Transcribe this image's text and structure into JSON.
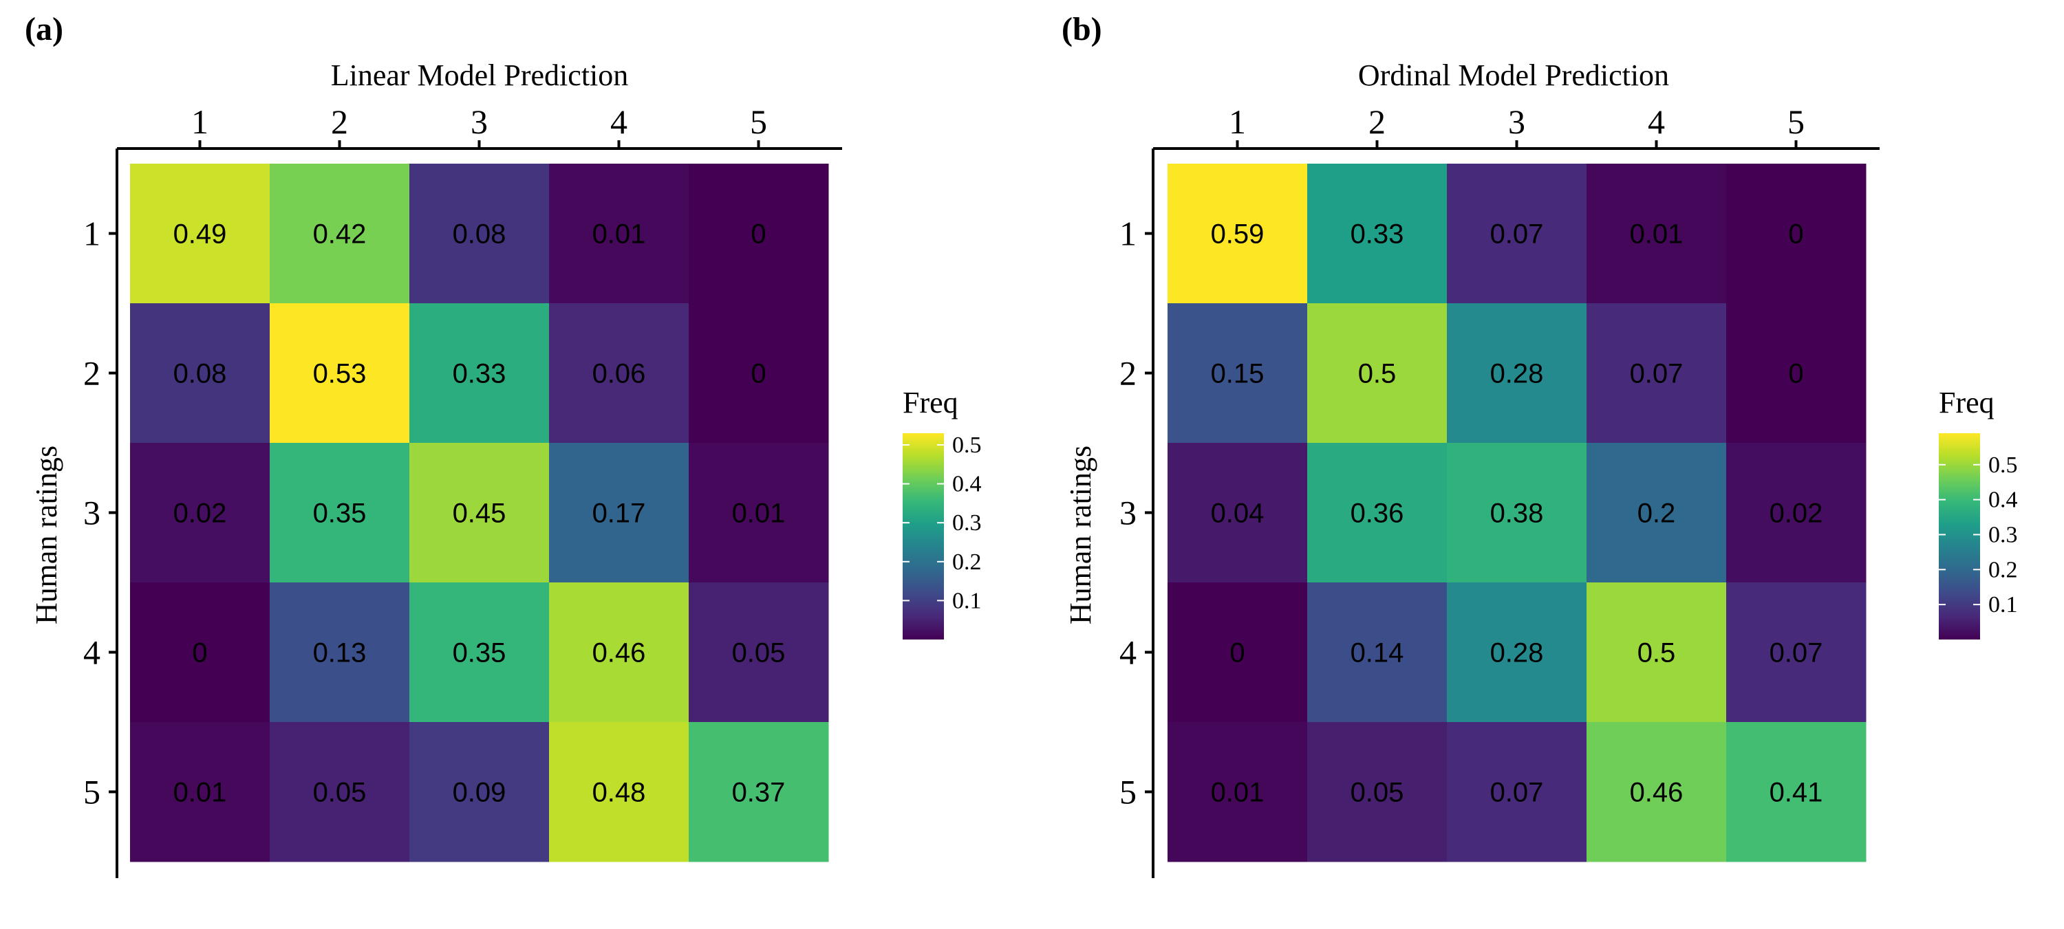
{
  "chart_data": [
    {
      "type": "heatmap",
      "panel_label": "(a)",
      "xlabel": "Linear Model Prediction",
      "ylabel": "Human ratings",
      "x_categories": [
        "1",
        "2",
        "3",
        "4",
        "5"
      ],
      "y_categories": [
        "1",
        "2",
        "3",
        "4",
        "5"
      ],
      "values": [
        [
          0.49,
          0.42,
          0.08,
          0.01,
          0
        ],
        [
          0.08,
          0.53,
          0.33,
          0.06,
          0
        ],
        [
          0.02,
          0.35,
          0.45,
          0.17,
          0.01
        ],
        [
          0,
          0.13,
          0.35,
          0.46,
          0.05
        ],
        [
          0.01,
          0.05,
          0.09,
          0.48,
          0.37
        ]
      ],
      "colorscale": "viridis",
      "color_range": [
        0,
        0.53
      ],
      "legend": {
        "title": "Freq",
        "ticks": [
          0.1,
          0.2,
          0.3,
          0.4,
          0.5
        ],
        "tick_labels": [
          "0.1",
          "0.2",
          "0.3",
          "0.4",
          "0.5"
        ],
        "placement": "right"
      },
      "x_axis_position": "top"
    },
    {
      "type": "heatmap",
      "panel_label": "(b)",
      "xlabel": "Ordinal Model Prediction",
      "ylabel": "Human ratings",
      "x_categories": [
        "1",
        "2",
        "3",
        "4",
        "5"
      ],
      "y_categories": [
        "1",
        "2",
        "3",
        "4",
        "5"
      ],
      "values": [
        [
          0.59,
          0.33,
          0.07,
          0.01,
          0
        ],
        [
          0.15,
          0.5,
          0.28,
          0.07,
          0
        ],
        [
          0.04,
          0.36,
          0.38,
          0.2,
          0.02
        ],
        [
          0,
          0.14,
          0.28,
          0.5,
          0.07
        ],
        [
          0.01,
          0.05,
          0.07,
          0.46,
          0.41
        ]
      ],
      "colorscale": "viridis",
      "color_range": [
        0,
        0.59
      ],
      "legend": {
        "title": "Freq",
        "ticks": [
          0.1,
          0.2,
          0.3,
          0.4,
          0.5
        ],
        "tick_labels": [
          "0.1",
          "0.2",
          "0.3",
          "0.4",
          "0.5"
        ],
        "placement": "right"
      },
      "x_axis_position": "top"
    }
  ]
}
